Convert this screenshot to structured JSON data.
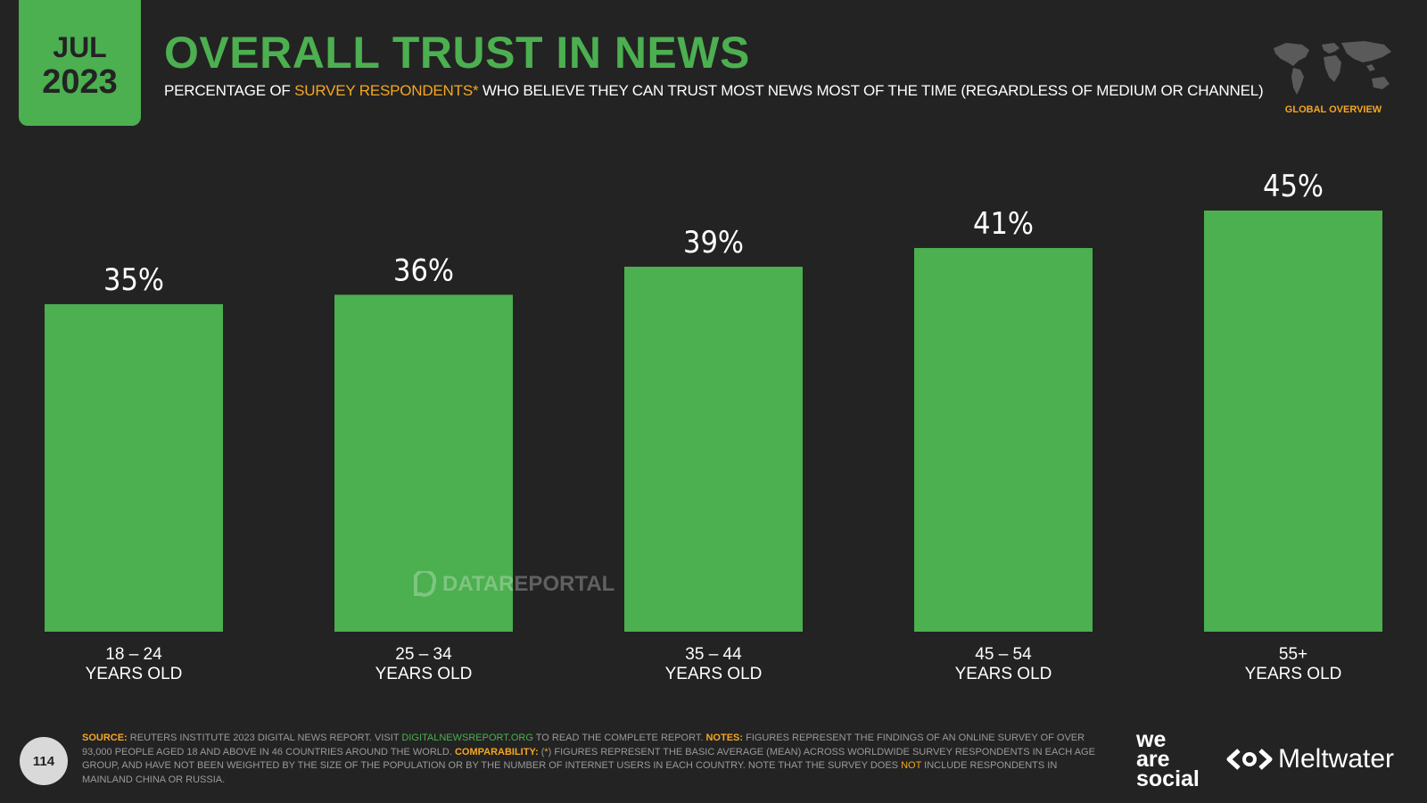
{
  "header": {
    "month": "JUL",
    "year": "2023",
    "title": "OVERALL TRUST IN NEWS",
    "subtitle_pre": "PERCENTAGE OF ",
    "subtitle_highlight": "SURVEY RESPONDENTS*",
    "subtitle_post": " WHO BELIEVE THEY CAN TRUST MOST NEWS MOST OF THE TIME (REGARDLESS OF MEDIUM OR CHANNEL)",
    "badge": "GLOBAL OVERVIEW"
  },
  "watermark": "DATAREPORTAL",
  "footer": {
    "page_number": "114",
    "source_label": "SOURCE:",
    "source_text": " REUTERS INSTITUTE 2023 DIGITAL NEWS REPORT. VISIT ",
    "source_link": "DIGITALNEWSREPORT.ORG",
    "source_after": " TO READ THE COMPLETE REPORT. ",
    "notes_label": "NOTES:",
    "notes_text": " FIGURES REPRESENT THE FINDINGS OF AN ONLINE SURVEY OF OVER 93,000 PEOPLE AGED 18 AND ABOVE IN 46 COUNTRIES AROUND THE WORLD. ",
    "comparability_label": "COMPARABILITY:",
    "comparability_pre": " (",
    "comparability_star": "*",
    "comparability_text": ") FIGURES REPRESENT THE BASIC AVERAGE (MEAN) ACROSS WORLDWIDE SURVEY RESPONDENTS IN EACH AGE GROUP, AND HAVE NOT BEEN WEIGHTED BY THE SIZE OF THE POPULATION OR BY THE NUMBER OF INTERNET USERS IN EACH COUNTRY. NOTE THAT THE SURVEY DOES ",
    "not_word": "NOT",
    "final_text": " INCLUDE RESPONDENTS IN MAINLAND CHINA OR RUSSIA."
  },
  "logos": {
    "was_line1": "we",
    "was_line2": "are",
    "was_line3": "social",
    "meltwater": "Meltwater"
  },
  "colors": {
    "background": "#232323",
    "accent_green": "#4CAF50",
    "accent_orange": "#F5A623"
  },
  "chart_data": {
    "type": "bar",
    "categories": [
      [
        "18 – 24",
        "YEARS OLD"
      ],
      [
        "25 – 34",
        "YEARS OLD"
      ],
      [
        "35 – 44",
        "YEARS OLD"
      ],
      [
        "45 – 54",
        "YEARS OLD"
      ],
      [
        "55+",
        "YEARS OLD"
      ]
    ],
    "values": [
      35,
      36,
      39,
      41,
      45
    ],
    "labels": [
      "35%",
      "36%",
      "39%",
      "41%",
      "45%"
    ],
    "unit": "%",
    "ylim": [
      0,
      45
    ],
    "grid": false,
    "legend": "none",
    "bar_color": "#4CAF50"
  }
}
